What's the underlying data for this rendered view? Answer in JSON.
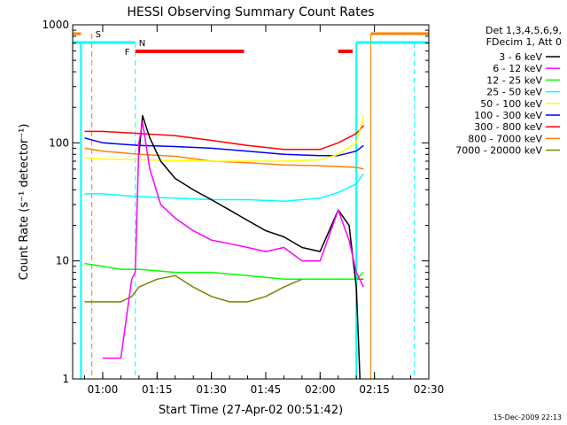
{
  "chart_data": {
    "type": "line",
    "title": "HESSI Observing Summary Count Rates",
    "xlabel": "Start Time (27-Apr-02 00:51:42)",
    "ylabel": "Count Rate (s⁻¹ detector⁻¹)",
    "y_scale": "log",
    "ylim": [
      1,
      1000
    ],
    "xlim": [
      "00:51:42",
      "02:30:00"
    ],
    "x_ticks": [
      "01:00",
      "01:15",
      "01:30",
      "01:45",
      "02:00",
      "02:15",
      "02:30"
    ],
    "y_ticks": [
      "1",
      "10",
      "100",
      "1000"
    ],
    "legend_header": [
      "Det 1,3,4,5,6,9,",
      "FDecim 1, Att 0"
    ],
    "legend_position": "right",
    "footer_date": "15-Dec-2009 22:13",
    "series": [
      {
        "name": "3 - 6 keV",
        "color": "#000000",
        "x": [
          "01:09",
          "01:10",
          "01:11",
          "01:13",
          "01:16",
          "01:20",
          "01:25",
          "01:30",
          "01:35",
          "01:40",
          "01:45",
          "01:50",
          "01:55",
          "02:00",
          "02:05",
          "02:08",
          "02:10",
          "02:11"
        ],
        "y": [
          null,
          80,
          170,
          110,
          70,
          50,
          40,
          33,
          27,
          22,
          18,
          16,
          13,
          12,
          27,
          20,
          6,
          1
        ]
      },
      {
        "name": "6 - 12 keV",
        "color": "#ff00ff",
        "x": [
          "00:55",
          "01:00",
          "01:05",
          "01:08",
          "01:09",
          "01:10",
          "01:11",
          "01:13",
          "01:16",
          "01:20",
          "01:25",
          "01:30",
          "01:35",
          "01:40",
          "01:45",
          "01:50",
          "01:55",
          "02:00",
          "02:05",
          "02:08",
          "02:10",
          "02:12"
        ],
        "y": [
          null,
          1.5,
          1.5,
          7,
          8,
          100,
          150,
          60,
          30,
          23,
          18,
          15,
          14,
          13,
          12,
          13,
          10,
          10,
          27,
          15,
          8,
          6
        ]
      },
      {
        "name": "12 - 25 keV",
        "color": "#00ff00",
        "x": [
          "00:55",
          "01:00",
          "01:05",
          "01:10",
          "01:20",
          "01:30",
          "01:40",
          "01:50",
          "02:00",
          "02:05",
          "02:10",
          "02:12"
        ],
        "y": [
          9.5,
          9,
          8.5,
          8.5,
          8,
          8,
          7.5,
          7,
          7,
          7,
          7,
          8
        ]
      },
      {
        "name": "25 - 50 keV",
        "color": "#00ffff",
        "x": [
          "00:55",
          "01:00",
          "01:10",
          "01:20",
          "01:30",
          "01:40",
          "01:50",
          "02:00",
          "02:05",
          "02:10",
          "02:12"
        ],
        "y": [
          37,
          37,
          35,
          34,
          33,
          33,
          32,
          34,
          38,
          45,
          55
        ]
      },
      {
        "name": "50 - 100 keV",
        "color": "#ffff00",
        "x": [
          "00:55",
          "01:00",
          "01:10",
          "01:20",
          "01:30",
          "01:40",
          "01:50",
          "02:00",
          "02:05",
          "02:10",
          "02:12"
        ],
        "y": [
          75,
          73,
          72,
          71,
          70,
          70,
          70,
          72,
          80,
          100,
          170
        ]
      },
      {
        "name": "100 - 300 keV",
        "color": "#0000ff",
        "x": [
          "00:55",
          "01:00",
          "01:10",
          "01:20",
          "01:30",
          "01:40",
          "01:50",
          "02:00",
          "02:05",
          "02:10",
          "02:12"
        ],
        "y": [
          110,
          100,
          95,
          93,
          90,
          85,
          80,
          78,
          78,
          85,
          95
        ]
      },
      {
        "name": "300 - 800 keV",
        "color": "#ff0000",
        "x": [
          "00:55",
          "01:00",
          "01:10",
          "01:20",
          "01:30",
          "01:40",
          "01:50",
          "02:00",
          "02:05",
          "02:10",
          "02:12"
        ],
        "y": [
          125,
          125,
          120,
          115,
          105,
          95,
          88,
          88,
          100,
          120,
          140
        ]
      },
      {
        "name": "800 - 7000 keV",
        "color": "#ff8000",
        "x": [
          "00:55",
          "01:00",
          "01:10",
          "01:20",
          "01:30",
          "01:40",
          "01:50",
          "02:00",
          "02:05",
          "02:10",
          "02:12"
        ],
        "y": [
          90,
          85,
          80,
          77,
          70,
          68,
          65,
          64,
          63,
          62,
          60
        ]
      },
      {
        "name": "7000 - 20000 keV",
        "color": "#808000",
        "x": [
          "00:55",
          "01:00",
          "01:05",
          "01:08",
          "01:10",
          "01:15",
          "01:20",
          "01:25",
          "01:30",
          "01:35",
          "01:40",
          "01:45",
          "01:50",
          "01:55",
          "02:00",
          "02:05",
          "02:10",
          "02:12"
        ],
        "y": [
          4.5,
          4.5,
          4.5,
          5,
          6,
          7,
          7.5,
          6,
          5,
          4.5,
          4.5,
          5,
          6,
          7,
          7,
          7,
          7,
          7
        ]
      }
    ],
    "flag_markers": [
      {
        "label": "S",
        "color": "#ff8000"
      },
      {
        "label": "N",
        "color": "#00ffff"
      },
      {
        "label": "F",
        "color": "#ff0000"
      }
    ]
  }
}
